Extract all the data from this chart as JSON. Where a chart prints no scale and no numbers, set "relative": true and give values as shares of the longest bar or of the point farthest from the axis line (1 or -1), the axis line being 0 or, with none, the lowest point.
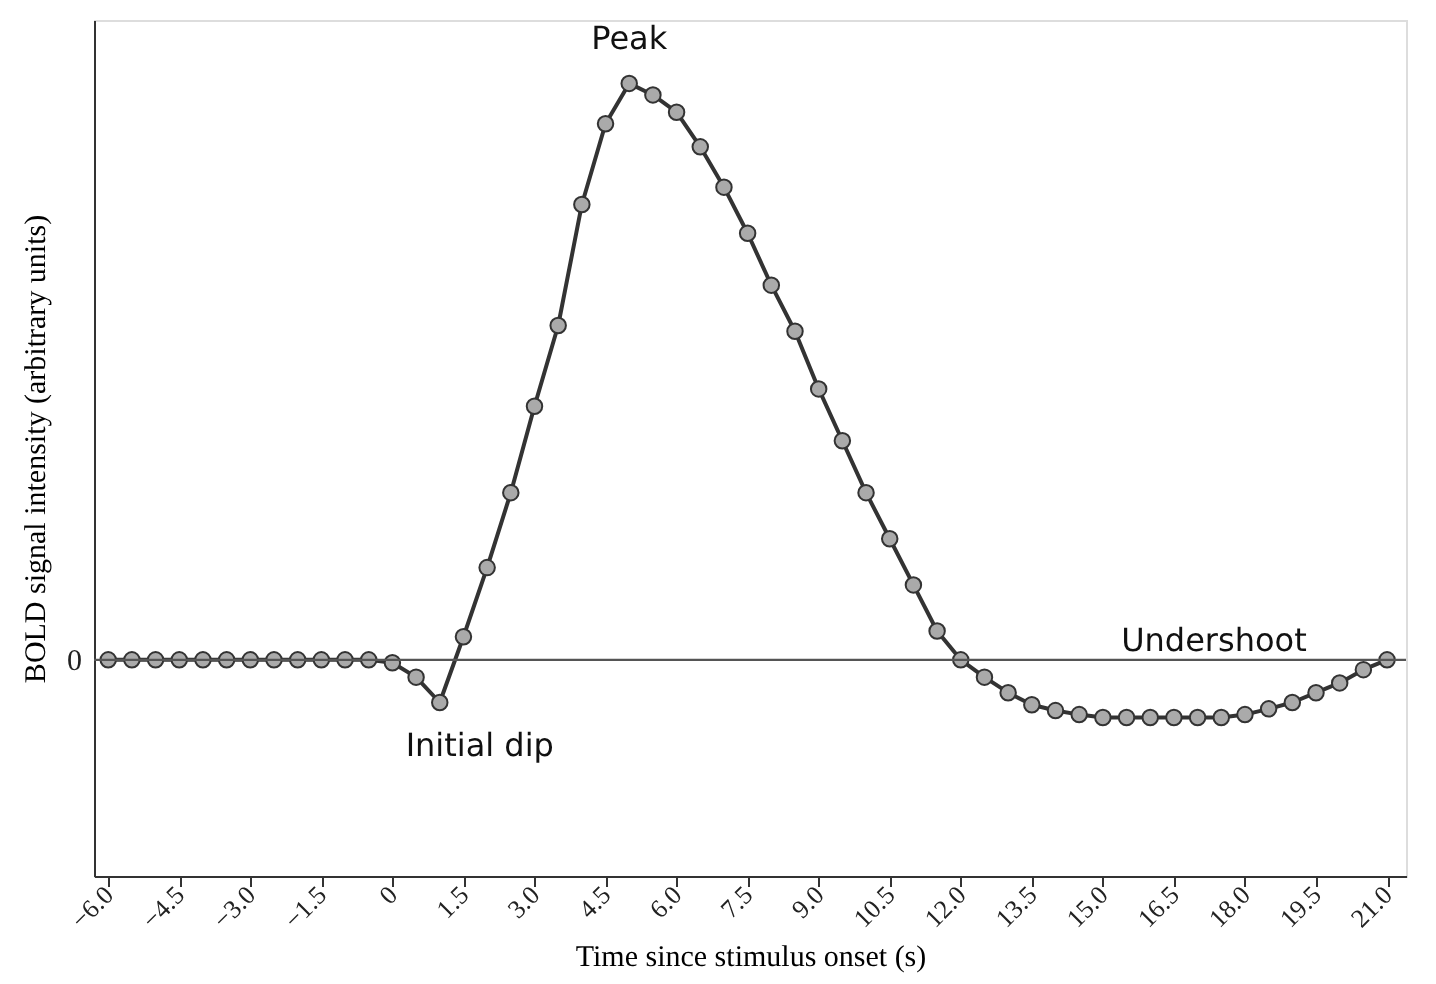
{
  "chart_data": {
    "type": "line",
    "xlabel": "Time since stimulus onset (s)",
    "ylabel": "BOLD signal intensity (arbitrary units)",
    "relative": true,
    "x": [
      -6,
      -5.5,
      -5,
      -4.5,
      -4,
      -3.5,
      -3,
      -2.5,
      -2,
      -1.5,
      -1,
      -0.5,
      0,
      0.5,
      1,
      1.5,
      2,
      2.5,
      3,
      3.5,
      4,
      4.5,
      5,
      5.5,
      6,
      6.5,
      7,
      7.5,
      8,
      8.5,
      9,
      9.5,
      10,
      10.5,
      11,
      11.5,
      12,
      12.5,
      13,
      13.5,
      14,
      14.5,
      15,
      15.5,
      16,
      16.5,
      17,
      17.5,
      18,
      18.5,
      19,
      19.5,
      20,
      20.5,
      21
    ],
    "series": [
      {
        "color": "#333333",
        "values": [
          0,
          0,
          0,
          0,
          0,
          0,
          0,
          0,
          0,
          0,
          0,
          0,
          -0.005,
          -0.03,
          -0.074,
          0.04,
          0.16,
          0.29,
          0.44,
          0.58,
          0.79,
          0.93,
          1.0,
          0.98,
          0.95,
          0.89,
          0.82,
          0.74,
          0.65,
          0.57,
          0.47,
          0.38,
          0.29,
          0.21,
          0.13,
          0.05,
          0.0,
          -0.03,
          -0.057,
          -0.078,
          -0.088,
          -0.095,
          -0.1,
          -0.1,
          -0.1,
          -0.1,
          -0.1,
          -0.1,
          -0.095,
          -0.085,
          -0.074,
          -0.057,
          -0.04,
          -0.017,
          0.0
        ]
      }
    ],
    "xlim": [
      -6.3,
      21.4
    ],
    "xticks": [
      {
        "value": -6,
        "label": "−6.0"
      },
      {
        "value": -4.5,
        "label": "−4.5"
      },
      {
        "value": -3,
        "label": "−3.0"
      },
      {
        "value": -1.5,
        "label": "−1.5"
      },
      0,
      1.5,
      {
        "value": 3,
        "label": "3.0"
      },
      4.5,
      {
        "value": 6,
        "label": "6.0"
      },
      7.5,
      {
        "value": 9,
        "label": "9.0"
      },
      10.5,
      {
        "value": 12,
        "label": "12.0"
      },
      13.5,
      {
        "value": 15,
        "label": "15.0"
      },
      16.5,
      {
        "value": 18,
        "label": "18.0"
      },
      19.5,
      {
        "value": 21,
        "label": "21.0"
      }
    ],
    "ref_lines": [
      {
        "axis": "y",
        "value": 0,
        "label": "0",
        "color": "#555555"
      }
    ],
    "annotations": [
      {
        "text": "Peak",
        "x": 5,
        "y": 1.0
      },
      {
        "text": "Initial dip",
        "x": 1,
        "y": -0.074
      },
      {
        "text": "Undershoot",
        "x": 16.5,
        "y": -0.1
      }
    ],
    "marker": "circle",
    "line_style": "solid",
    "grid": false
  }
}
